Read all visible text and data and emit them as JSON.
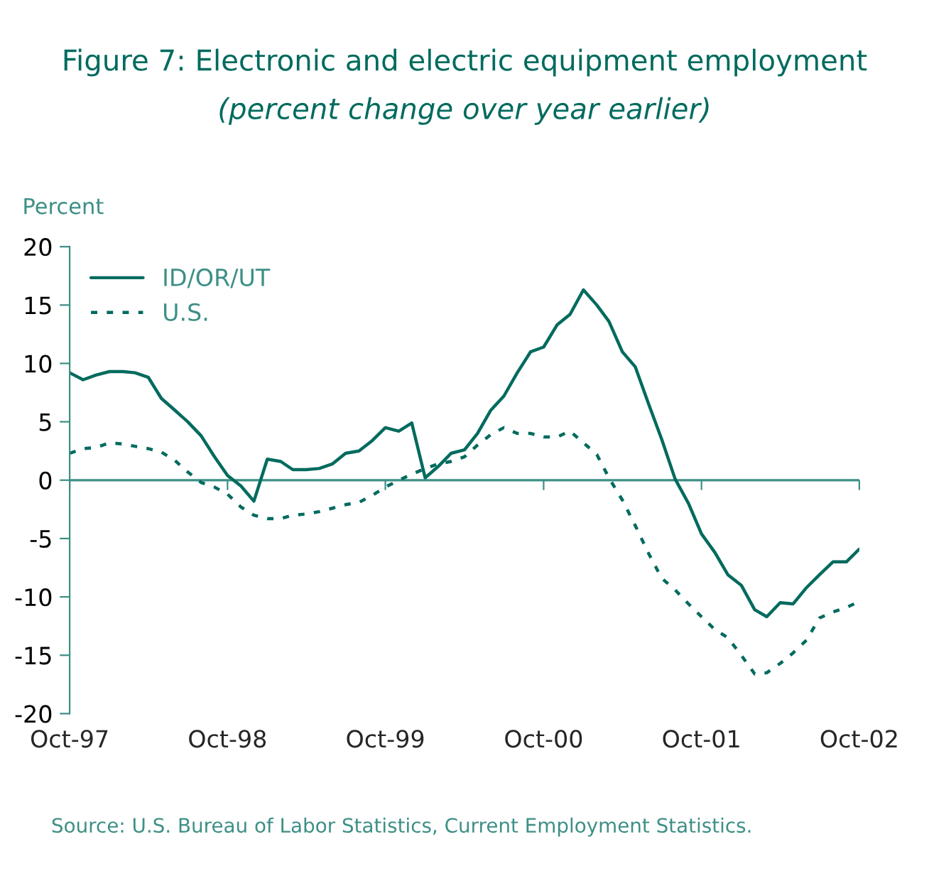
{
  "chart_data": {
    "type": "line",
    "title": "Figure 7: Electronic and electric equipment employment",
    "subtitle": "(percent change over year earlier)",
    "ylabel": "Percent",
    "annotations": [
      "Source: U.S. Bureau of Labor Statistics, Current Employment Statistics."
    ],
    "x": [
      "1997-10",
      "1997-11",
      "1997-12",
      "1998-01",
      "1998-02",
      "1998-03",
      "1998-04",
      "1998-05",
      "1998-06",
      "1998-07",
      "1998-08",
      "1998-09",
      "1998-10",
      "1998-11",
      "1998-12",
      "1999-01",
      "1999-02",
      "1999-03",
      "1999-04",
      "1999-05",
      "1999-06",
      "1999-07",
      "1999-08",
      "1999-09",
      "1999-10",
      "1999-11",
      "1999-12",
      "2000-01",
      "2000-02",
      "2000-03",
      "2000-04",
      "2000-05",
      "2000-06",
      "2000-07",
      "2000-08",
      "2000-09",
      "2000-10",
      "2000-11",
      "2000-12",
      "2001-01",
      "2001-02",
      "2001-03",
      "2001-04",
      "2001-05",
      "2001-06",
      "2001-07",
      "2001-08",
      "2001-09",
      "2001-10",
      "2001-11",
      "2001-12",
      "2002-01",
      "2002-02",
      "2002-03",
      "2002-04",
      "2002-05",
      "2002-06",
      "2002-07",
      "2002-08",
      "2002-09",
      "2002-10"
    ],
    "series": [
      {
        "name": "ID/OR/UT",
        "color": "#006b5e",
        "line_style": "solid",
        "values": [
          9.2,
          8.6,
          9.0,
          9.3,
          9.3,
          9.2,
          8.8,
          7.0,
          6.0,
          5.0,
          3.8,
          2.0,
          0.4,
          -0.5,
          -1.8,
          1.8,
          1.6,
          0.9,
          0.9,
          1.0,
          1.4,
          2.3,
          2.5,
          3.4,
          4.5,
          4.2,
          4.9,
          0.2,
          1.2,
          2.3,
          2.6,
          4.0,
          6.0,
          7.2,
          9.2,
          11.0,
          11.4,
          13.3,
          14.2,
          16.3,
          15.0,
          13.6,
          11.0,
          9.7,
          6.5,
          3.5,
          0.1,
          -2.0,
          -4.6,
          -6.2,
          -8.1,
          -9.0,
          -11.1,
          -11.7,
          -10.5,
          -10.6,
          -9.2,
          -8.1,
          -7.0,
          -7.0,
          -5.9
        ]
      },
      {
        "name": "U.S.",
        "color": "#006b5e",
        "line_style": "dotted",
        "values": [
          2.3,
          2.7,
          2.8,
          3.2,
          3.1,
          2.9,
          2.7,
          2.4,
          1.7,
          0.7,
          -0.2,
          -0.6,
          -1.2,
          -2.3,
          -3.0,
          -3.3,
          -3.3,
          -3.0,
          -2.9,
          -2.7,
          -2.4,
          -2.1,
          -1.9,
          -1.3,
          -0.6,
          0.0,
          0.5,
          1.0,
          1.4,
          1.6,
          2.0,
          3.0,
          3.9,
          4.5,
          4.0,
          4.0,
          3.7,
          3.7,
          4.2,
          3.2,
          2.2,
          0.2,
          -1.7,
          -3.9,
          -6.3,
          -8.4,
          -9.4,
          -10.6,
          -11.7,
          -12.8,
          -13.5,
          -15.0,
          -16.6,
          -16.5,
          -15.7,
          -14.8,
          -13.7,
          -11.8,
          -11.3,
          -10.9,
          -10.4
        ]
      }
    ],
    "xlim": [
      "1997-10",
      "2002-10"
    ],
    "xticks": [
      {
        "value": "1997-10",
        "label": "Oct-97"
      },
      {
        "value": "1998-10",
        "label": "Oct-98"
      },
      {
        "value": "1999-10",
        "label": "Oct-99"
      },
      {
        "value": "2000-10",
        "label": "Oct-00"
      },
      {
        "value": "2001-10",
        "label": "Oct-01"
      },
      {
        "value": "2002-10",
        "label": "Oct-02"
      }
    ],
    "ylim": [
      -20,
      20
    ],
    "yticks": [
      -20,
      -15,
      -10,
      -5,
      0,
      5,
      10,
      15,
      20
    ],
    "ref_lines": [
      {
        "axis": "y",
        "value": 0,
        "color": "#3d8f86"
      }
    ],
    "grid": false,
    "legend": "top left"
  }
}
